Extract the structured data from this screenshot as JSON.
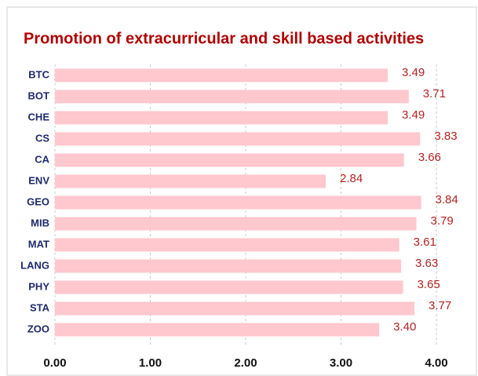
{
  "chart_data": {
    "type": "bar",
    "orientation": "horizontal",
    "title": "Promotion of extracurricular and skill based activities",
    "categories": [
      "BTC",
      "BOT",
      "CHE",
      "CS",
      "CA",
      "ENV",
      "GEO",
      "MIB",
      "MAT",
      "LANG",
      "PHY",
      "STA",
      "ZOO"
    ],
    "values": [
      3.49,
      3.71,
      3.49,
      3.83,
      3.66,
      2.84,
      3.84,
      3.79,
      3.61,
      3.63,
      3.65,
      3.77,
      3.4
    ],
    "value_labels": [
      "3.49",
      "3.71",
      "3.49",
      "3.83",
      "3.66",
      "2.84",
      "3.84",
      "3.79",
      "3.61",
      "3.63",
      "3.65",
      "3.77",
      "3.40"
    ],
    "color": "#ffc7ce",
    "xlim": [
      0,
      4
    ],
    "xticks": [
      {
        "value": 0,
        "label": "0.00"
      },
      {
        "value": 1,
        "label": "1.00"
      },
      {
        "value": 2,
        "label": "2.00"
      },
      {
        "value": 3,
        "label": "3.00"
      },
      {
        "value": 4,
        "label": "4.00"
      }
    ],
    "grid": true
  }
}
